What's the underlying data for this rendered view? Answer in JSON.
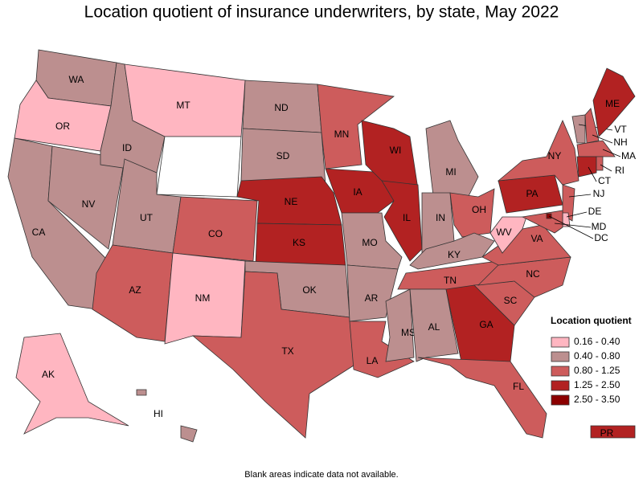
{
  "title": "Location quotient of insurance underwriters, by state, May 2022",
  "note": "Blank areas indicate data not available.",
  "legend": {
    "title": "Location quotient",
    "items": [
      {
        "label": "0.16 - 0.40",
        "color": "#ffb6c1"
      },
      {
        "label": "0.40 - 0.80",
        "color": "#bc8f8f"
      },
      {
        "label": "0.80 - 1.25",
        "color": "#cd5c5c"
      },
      {
        "label": "1.25 - 2.50",
        "color": "#b22222"
      },
      {
        "label": "2.50 - 3.50",
        "color": "#8b0000"
      }
    ]
  },
  "states": [
    {
      "label": "WA",
      "range": "0.40 - 0.80"
    },
    {
      "label": "OR",
      "range": "0.16 - 0.40"
    },
    {
      "label": "CA",
      "range": "0.40 - 0.80"
    },
    {
      "label": "NV",
      "range": "0.40 - 0.80"
    },
    {
      "label": "ID",
      "range": "0.40 - 0.80"
    },
    {
      "label": "MT",
      "range": "0.16 - 0.40"
    },
    {
      "label": null,
      "range": null
    },
    {
      "label": "UT",
      "range": "0.40 - 0.80"
    },
    {
      "label": "CO",
      "range": "0.80 - 1.25"
    },
    {
      "label": "AZ",
      "range": "0.80 - 1.25"
    },
    {
      "label": "NM",
      "range": "0.16 - 0.40"
    },
    {
      "label": "ND",
      "range": "0.40 - 0.80"
    },
    {
      "label": "SD",
      "range": "0.40 - 0.80"
    },
    {
      "label": "NE",
      "range": "1.25 - 2.50"
    },
    {
      "label": "KS",
      "range": "1.25 - 2.50"
    },
    {
      "label": "OK",
      "range": "0.40 - 0.80"
    },
    {
      "label": "TX",
      "range": "0.80 - 1.25"
    },
    {
      "label": "MN",
      "range": "0.80 - 1.25"
    },
    {
      "label": "IA",
      "range": "1.25 - 2.50"
    },
    {
      "label": "MO",
      "range": "0.40 - 0.80"
    },
    {
      "label": "AR",
      "range": "0.40 - 0.80"
    },
    {
      "label": "LA",
      "range": "0.80 - 1.25"
    },
    {
      "label": "WI",
      "range": "1.25 - 2.50"
    },
    {
      "label": "IL",
      "range": "1.25 - 2.50"
    },
    {
      "label": "MI",
      "range": "0.40 - 0.80"
    },
    {
      "label": "IN",
      "range": "0.40 - 0.80"
    },
    {
      "label": "OH",
      "range": "0.80 - 1.25"
    },
    {
      "label": "KY",
      "range": "0.40 - 0.80"
    },
    {
      "label": "TN",
      "range": "0.80 - 1.25"
    },
    {
      "label": "MS",
      "range": "0.40 - 0.80"
    },
    {
      "label": "AL",
      "range": "0.40 - 0.80"
    },
    {
      "label": "GA",
      "range": "1.25 - 2.50"
    },
    {
      "label": "FL",
      "range": "0.80 - 1.25"
    },
    {
      "label": "SC",
      "range": "0.80 - 1.25"
    },
    {
      "label": "NC",
      "range": "0.80 - 1.25"
    },
    {
      "label": "VA",
      "range": "0.80 - 1.25"
    },
    {
      "label": "WV",
      "range": "0.16 - 0.40"
    },
    {
      "label": "PA",
      "range": "1.25 - 2.50"
    },
    {
      "label": "NY",
      "range": "0.80 - 1.25"
    },
    {
      "label": "VT",
      "range": "0.40 - 0.80"
    },
    {
      "label": "NH",
      "range": "0.80 - 1.25"
    },
    {
      "label": "ME",
      "range": "1.25 - 2.50"
    },
    {
      "label": "MA",
      "range": "0.80 - 1.25"
    },
    {
      "label": "CT",
      "range": "1.25 - 2.50"
    },
    {
      "label": "RI",
      "range": "0.80 - 1.25"
    },
    {
      "label": "NJ",
      "range": "0.80 - 1.25"
    },
    {
      "label": "DE",
      "range": "0.16 - 0.40"
    },
    {
      "label": "MD",
      "range": "0.80 - 1.25"
    },
    {
      "label": "DC",
      "range": "2.50 - 3.50"
    },
    {
      "label": "AK",
      "range": "0.16 - 0.40"
    },
    {
      "label": "HI",
      "range": "0.40 - 0.80"
    },
    {
      "label": "PR",
      "range": "1.25 - 2.50"
    }
  ]
}
